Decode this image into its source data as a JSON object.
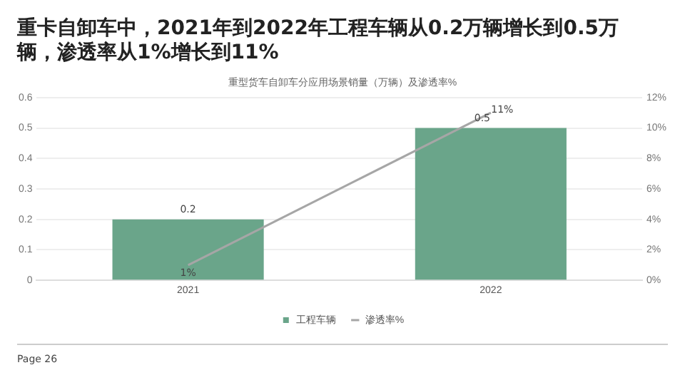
{
  "chart_data": {
    "type": "bar",
    "title": "重卡自卸车中，2021年到2022年工程车辆从0.2万辆增长到0.5万辆，渗透率从1%增长到11%",
    "subtitle": "重型货车自卸车分应用场景销量（万辆）及渗透率%",
    "categories": [
      "2021",
      "2022"
    ],
    "series": [
      {
        "name": "工程车辆",
        "color": "#6aa58a",
        "values": [
          0.2,
          0.5
        ],
        "value_labels": [
          "0.2",
          "0.5"
        ]
      },
      {
        "name": "渗透率%",
        "type": "line",
        "axis": "y2",
        "color": "#a6a6a6",
        "values": [
          1,
          11
        ],
        "value_labels": [
          "1%",
          "11%"
        ]
      }
    ],
    "ylim": [
      0,
      0.6
    ],
    "yticks": [
      0,
      0.1,
      0.2,
      0.3,
      0.4,
      0.5,
      0.6
    ],
    "y2lim": [
      0,
      12
    ],
    "y2ticks": [
      {
        "value": 0,
        "label": "0%"
      },
      {
        "value": 2,
        "label": "2%"
      },
      {
        "value": 4,
        "label": "4%"
      },
      {
        "value": 6,
        "label": "6%"
      },
      {
        "value": 8,
        "label": "8%"
      },
      {
        "value": 10,
        "label": "10%"
      },
      {
        "value": 12,
        "label": "12%"
      }
    ],
    "grid": "y",
    "legend": "bottom",
    "marker": "none",
    "annotations": [
      "Page 26"
    ]
  }
}
